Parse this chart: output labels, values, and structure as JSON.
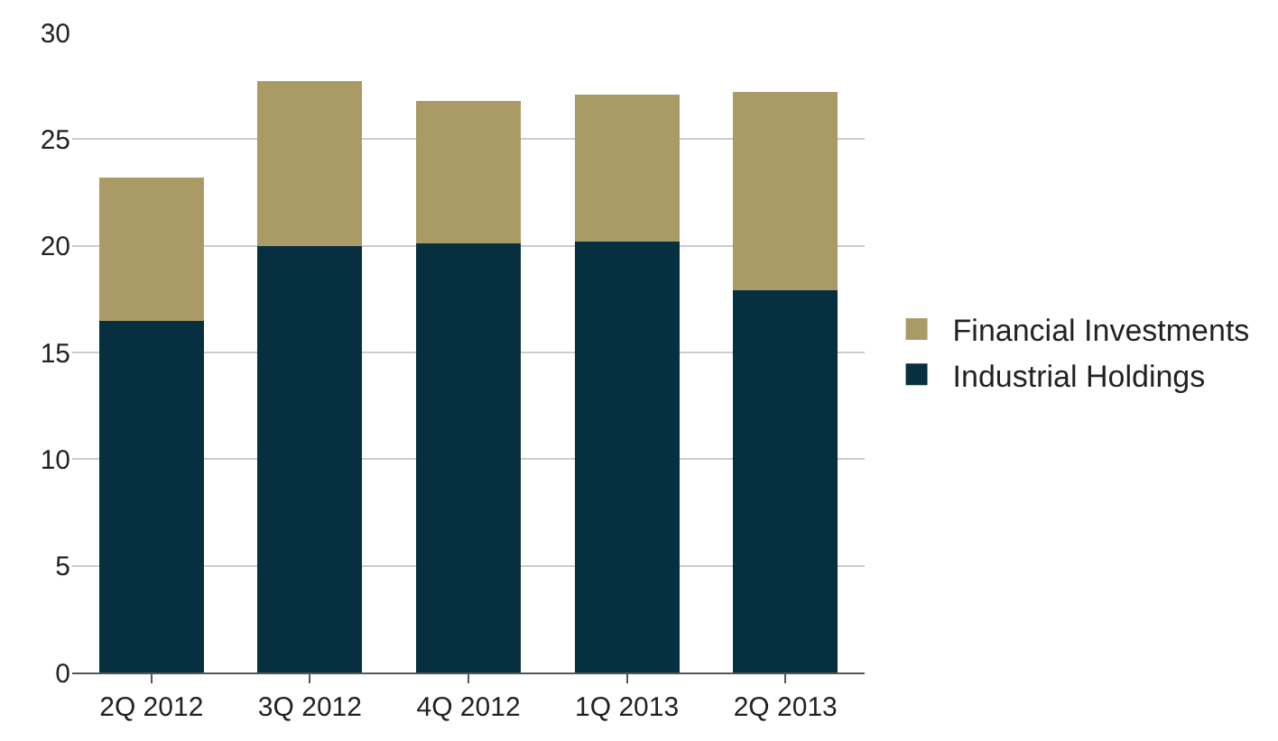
{
  "chart_data": {
    "type": "bar",
    "stacked": true,
    "categories": [
      "2Q 2012",
      "3Q 2012",
      "4Q 2012",
      "1Q 2013",
      "2Q 2013"
    ],
    "series": [
      {
        "name": "Industrial Holdings",
        "color": "#06303f",
        "values": [
          16.5,
          20.0,
          20.1,
          20.2,
          17.9
        ]
      },
      {
        "name": "Financial Investments",
        "color": "#a99a66",
        "values": [
          6.7,
          7.7,
          6.7,
          6.9,
          9.3
        ]
      }
    ],
    "ylim": [
      0,
      30
    ],
    "yticks": [
      0,
      5,
      10,
      15,
      20,
      25,
      30
    ],
    "grid": "y",
    "legend": "right"
  }
}
